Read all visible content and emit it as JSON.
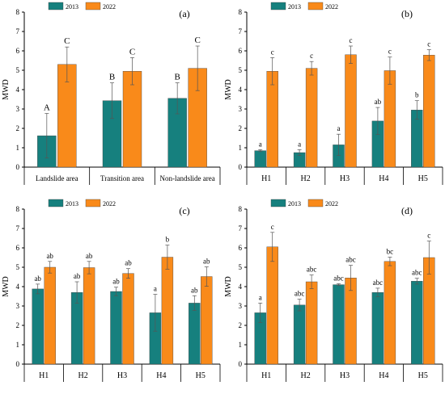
{
  "chart_data": [
    {
      "type": "bar",
      "panel_label": "(a)",
      "ylabel": "MWD",
      "ylim": [
        0,
        8
      ],
      "yticks": [
        "0",
        "1",
        "2",
        "3",
        "4",
        "5",
        "6",
        "7",
        "8"
      ],
      "legend_placement": "top-left",
      "categories": [
        "Landslide area",
        "Transition area",
        "Non-landslide area"
      ],
      "series": [
        {
          "name": "2013",
          "color": "#16807e",
          "values": [
            1.62,
            3.43,
            3.55
          ],
          "errors": [
            1.15,
            0.92,
            0.8
          ],
          "labels": [
            "A",
            "B",
            "B"
          ]
        },
        {
          "name": "2022",
          "color": "#f98a1a",
          "values": [
            5.3,
            4.95,
            5.1
          ],
          "errors": [
            0.9,
            0.7,
            1.15
          ],
          "labels": [
            "C",
            "C",
            "C"
          ]
        }
      ]
    },
    {
      "type": "bar",
      "panel_label": "(b)",
      "ylabel": "MWD",
      "ylim": [
        0,
        8
      ],
      "yticks": [
        "0",
        "1",
        "2",
        "3",
        "4",
        "5",
        "6",
        "7",
        "8"
      ],
      "legend_placement": "top-left",
      "categories": [
        "H1",
        "H2",
        "H3",
        "H4",
        "H5"
      ],
      "series": [
        {
          "name": "2013",
          "color": "#16807e",
          "values": [
            0.85,
            0.75,
            1.15,
            2.38,
            2.95
          ],
          "errors": [
            0.05,
            0.15,
            0.55,
            0.7,
            0.48
          ],
          "labels": [
            "a",
            "a",
            "a",
            "ab",
            "b"
          ]
        },
        {
          "name": "2022",
          "color": "#f98a1a",
          "values": [
            4.95,
            5.1,
            5.8,
            4.98,
            5.78
          ],
          "errors": [
            0.7,
            0.35,
            0.45,
            0.7,
            0.28
          ],
          "labels": [
            "c",
            "c",
            "c",
            "c",
            "c"
          ]
        }
      ]
    },
    {
      "type": "bar",
      "panel_label": "(c)",
      "ylabel": "MWD",
      "ylim": [
        0,
        8
      ],
      "yticks": [
        "0",
        "1",
        "2",
        "3",
        "4",
        "5",
        "6",
        "7",
        "8"
      ],
      "legend_placement": "top-left",
      "categories": [
        "H1",
        "H2",
        "H3",
        "H4",
        "H5"
      ],
      "series": [
        {
          "name": "2013",
          "color": "#16807e",
          "values": [
            3.88,
            3.7,
            3.75,
            2.65,
            3.15
          ],
          "errors": [
            0.25,
            0.55,
            0.22,
            0.95,
            0.38
          ],
          "labels": [
            "ab",
            "ab",
            "ab",
            "a",
            "ab"
          ]
        },
        {
          "name": "2022",
          "color": "#f98a1a",
          "values": [
            5.0,
            4.98,
            4.68,
            5.52,
            4.52
          ],
          "errors": [
            0.3,
            0.32,
            0.25,
            0.62,
            0.5
          ],
          "labels": [
            "ab",
            "ab",
            "ab",
            "b",
            "ab"
          ]
        }
      ]
    },
    {
      "type": "bar",
      "panel_label": "(d)",
      "ylabel": "MWD",
      "ylim": [
        0,
        8
      ],
      "yticks": [
        "0",
        "1",
        "2",
        "3",
        "4",
        "5",
        "6",
        "7",
        "8"
      ],
      "legend_placement": "top-left",
      "categories": [
        "H1",
        "H2",
        "H3",
        "H4",
        "H5"
      ],
      "series": [
        {
          "name": "2013",
          "color": "#16807e",
          "values": [
            2.65,
            3.05,
            4.1,
            3.7,
            4.28
          ],
          "errors": [
            0.5,
            0.3,
            0.05,
            0.22,
            0.15
          ],
          "labels": [
            "a",
            "abc",
            "abc",
            "abc",
            "abc"
          ]
        },
        {
          "name": "2022",
          "color": "#f98a1a",
          "values": [
            6.05,
            4.25,
            4.45,
            5.3,
            5.5
          ],
          "errors": [
            0.75,
            0.35,
            0.65,
            0.22,
            0.85
          ],
          "labels": [
            "c",
            "abc",
            "abc",
            "bc",
            "c"
          ]
        }
      ]
    }
  ]
}
